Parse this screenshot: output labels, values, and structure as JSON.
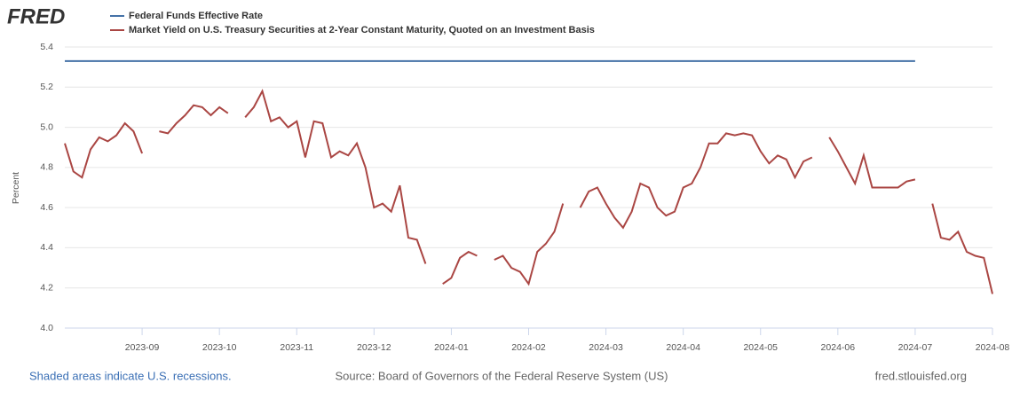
{
  "chart_data": {
    "type": "line",
    "logo": "FRED",
    "y_label": "Percent",
    "footer_left": "Shaded areas indicate U.S. recessions.",
    "source": "Source: Board of Governors of the Federal Reserve System (US)",
    "url": "fred.stlouisfed.org",
    "categories": [
      null,
      null,
      null,
      null,
      null,
      null,
      null,
      null,
      null,
      "2023-09",
      null,
      null,
      null,
      null,
      null,
      null,
      null,
      null,
      "2023-10",
      null,
      null,
      null,
      null,
      null,
      null,
      null,
      null,
      "2023-11",
      null,
      null,
      null,
      null,
      null,
      null,
      null,
      null,
      "2023-12",
      null,
      null,
      null,
      null,
      null,
      null,
      null,
      null,
      "2024-01",
      null,
      null,
      null,
      null,
      null,
      null,
      null,
      null,
      "2024-02",
      null,
      null,
      null,
      null,
      null,
      null,
      null,
      null,
      "2024-03",
      null,
      null,
      null,
      null,
      null,
      null,
      null,
      null,
      "2024-04",
      null,
      null,
      null,
      null,
      null,
      null,
      null,
      null,
      "2024-05",
      null,
      null,
      null,
      null,
      null,
      null,
      null,
      null,
      "2024-06",
      null,
      null,
      null,
      null,
      null,
      null,
      null,
      null,
      "2024-07",
      null,
      null,
      null,
      null,
      null,
      null,
      null,
      null,
      "2024-08"
    ],
    "series": [
      {
        "name": "Federal Funds Effective Rate",
        "color": "#4572a7",
        "values": [
          5.33,
          5.33,
          5.33,
          5.33,
          5.33,
          5.33,
          5.33,
          5.33,
          5.33,
          5.33,
          5.33,
          5.33,
          5.33,
          5.33,
          5.33,
          5.33,
          5.33,
          5.33,
          5.33,
          5.33,
          5.33,
          5.33,
          5.33,
          5.33,
          5.33,
          5.33,
          5.33,
          5.33,
          5.33,
          5.33,
          5.33,
          5.33,
          5.33,
          5.33,
          5.33,
          5.33,
          5.33,
          5.33,
          5.33,
          5.33,
          5.33,
          5.33,
          5.33,
          5.33,
          5.33,
          5.33,
          5.33,
          5.33,
          5.33,
          5.33,
          5.33,
          5.33,
          5.33,
          5.33,
          5.33,
          5.33,
          5.33,
          5.33,
          5.33,
          5.33,
          5.33,
          5.33,
          5.33,
          5.33,
          5.33,
          5.33,
          5.33,
          5.33,
          5.33,
          5.33,
          5.33,
          5.33,
          5.33,
          5.33,
          5.33,
          5.33,
          5.33,
          5.33,
          5.33,
          5.33,
          5.33,
          5.33,
          5.33,
          5.33,
          5.33,
          5.33,
          5.33,
          5.33,
          5.33,
          5.33,
          5.33,
          5.33,
          5.33,
          5.33,
          5.33,
          5.33,
          5.33,
          5.33,
          5.33,
          5.33,
          null,
          null,
          null,
          null,
          null,
          null,
          null,
          null,
          null
        ]
      },
      {
        "name": "Market Yield on U.S. Treasury Securities at 2-Year Constant Maturity, Quoted on an Investment Basis",
        "color": "#aa4643",
        "values": [
          4.92,
          4.78,
          4.75,
          4.89,
          4.95,
          4.93,
          4.96,
          5.02,
          4.98,
          4.87,
          null,
          4.98,
          4.97,
          5.02,
          5.06,
          5.11,
          5.1,
          5.06,
          5.1,
          5.07,
          null,
          5.05,
          5.1,
          5.18,
          5.03,
          5.05,
          5,
          5.03,
          4.85,
          5.03,
          5.02,
          4.85,
          4.88,
          4.86,
          4.92,
          4.8,
          4.6,
          4.62,
          4.58,
          4.71,
          4.45,
          4.44,
          4.32,
          null,
          4.22,
          4.25,
          4.35,
          4.38,
          4.36,
          null,
          4.34,
          4.36,
          4.3,
          4.28,
          4.22,
          4.38,
          4.42,
          4.48,
          4.62,
          null,
          4.6,
          4.68,
          4.7,
          4.62,
          4.55,
          4.5,
          4.58,
          4.72,
          4.7,
          4.6,
          4.56,
          4.58,
          4.7,
          4.72,
          4.8,
          4.92,
          4.92,
          4.97,
          4.96,
          4.97,
          4.96,
          4.88,
          4.82,
          4.86,
          4.84,
          4.75,
          4.83,
          4.85,
          null,
          4.95,
          4.88,
          4.8,
          4.72,
          4.86,
          4.7,
          4.7,
          4.7,
          4.7,
          4.73,
          4.74,
          null,
          4.62,
          4.45,
          4.44,
          4.48,
          4.38,
          4.36,
          4.35,
          4.17
        ]
      }
    ],
    "ylim": [
      4.0,
      5.4
    ],
    "yticks": [
      {
        "value": 4,
        "label": "4.0"
      },
      4.2,
      4.4,
      4.6,
      4.8,
      {
        "value": 5,
        "label": "5.0"
      },
      5.2,
      5.4
    ],
    "grid": true
  }
}
